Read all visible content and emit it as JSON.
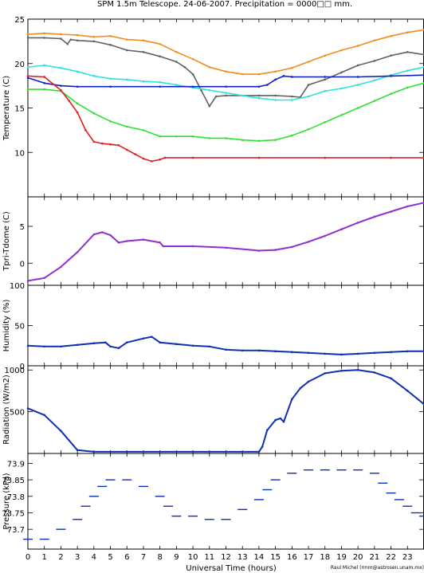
{
  "title": "SPM 1.5m Telescope. 24-06-2007. Precipitation = 0000□□ mm.",
  "xlabel": "Universal Time (hours)",
  "credit": "Raul Michel (rmm@astrosen.unam.mx)",
  "x_ticks": [
    "0",
    "1",
    "2",
    "3",
    "4",
    "5",
    "6",
    "7",
    "8",
    "9",
    "10",
    "11",
    "12",
    "13",
    "14",
    "15",
    "16",
    "17",
    "18",
    "19",
    "20",
    "21",
    "22",
    "23"
  ],
  "colors": {
    "orange": "#f08c1e",
    "gray": "#606060",
    "cyan": "#30e0e0",
    "blue": "#1020c0",
    "green": "#30e030",
    "red": "#e02020",
    "purple": "#9030d0",
    "navy": "#1030b0"
  },
  "chart_data": [
    {
      "type": "scatter",
      "ylabel": "Temperature (C)",
      "ylim": [
        5,
        25
      ],
      "y_ticks": [
        "10",
        "15",
        "20",
        "25"
      ],
      "xlim": [
        0,
        24
      ],
      "series": [
        {
          "color": "orange",
          "points": [
            [
              0,
              23.3
            ],
            [
              1,
              23.4
            ],
            [
              2,
              23.3
            ],
            [
              3,
              23.2
            ],
            [
              4,
              23.0
            ],
            [
              5,
              23.1
            ],
            [
              6,
              22.7
            ],
            [
              7,
              22.6
            ],
            [
              8,
              22.2
            ],
            [
              9,
              21.3
            ],
            [
              10,
              20.5
            ],
            [
              11,
              19.6
            ],
            [
              12,
              19.1
            ],
            [
              13,
              18.8
            ],
            [
              14,
              18.8
            ],
            [
              15,
              19.1
            ],
            [
              16,
              19.5
            ],
            [
              17,
              20.2
            ],
            [
              18,
              20.9
            ],
            [
              19,
              21.5
            ],
            [
              20,
              22.0
            ],
            [
              21,
              22.6
            ],
            [
              22,
              23.1
            ],
            [
              23,
              23.5
            ],
            [
              24,
              23.8
            ]
          ]
        },
        {
          "color": "gray",
          "points": [
            [
              0,
              22.9
            ],
            [
              1,
              22.9
            ],
            [
              2,
              22.8
            ],
            [
              2.4,
              22.2
            ],
            [
              2.6,
              22.7
            ],
            [
              3,
              22.6
            ],
            [
              4,
              22.5
            ],
            [
              5,
              22.1
            ],
            [
              6,
              21.5
            ],
            [
              7,
              21.3
            ],
            [
              8,
              20.8
            ],
            [
              9,
              20.2
            ],
            [
              9.5,
              19.6
            ],
            [
              10,
              18.8
            ],
            [
              10.5,
              17.0
            ],
            [
              11,
              15.2
            ],
            [
              11.4,
              16.3
            ],
            [
              12,
              16.4
            ],
            [
              14,
              16.4
            ],
            [
              15,
              16.4
            ],
            [
              16,
              16.3
            ],
            [
              16.5,
              16.2
            ],
            [
              17,
              17.6
            ],
            [
              18,
              18.2
            ],
            [
              19,
              19.0
            ],
            [
              20,
              19.8
            ],
            [
              21,
              20.3
            ],
            [
              22,
              20.9
            ],
            [
              23,
              21.3
            ],
            [
              24,
              21.0
            ]
          ]
        },
        {
          "color": "cyan",
          "points": [
            [
              0,
              19.6
            ],
            [
              1,
              19.8
            ],
            [
              2,
              19.5
            ],
            [
              3,
              19.1
            ],
            [
              4,
              18.6
            ],
            [
              5,
              18.3
            ],
            [
              6,
              18.2
            ],
            [
              7,
              18.0
            ],
            [
              8,
              17.9
            ],
            [
              9,
              17.6
            ],
            [
              10,
              17.3
            ],
            [
              11,
              17.0
            ],
            [
              12,
              16.7
            ],
            [
              13,
              16.4
            ],
            [
              14,
              16.1
            ],
            [
              15,
              15.9
            ],
            [
              16,
              15.9
            ],
            [
              17,
              16.3
            ],
            [
              18,
              16.9
            ],
            [
              19,
              17.2
            ],
            [
              20,
              17.6
            ],
            [
              21,
              18.1
            ],
            [
              22,
              18.7
            ],
            [
              23,
              19.2
            ],
            [
              24,
              19.6
            ]
          ]
        },
        {
          "color": "blue",
          "points": [
            [
              0,
              18.4
            ],
            [
              1,
              17.8
            ],
            [
              2,
              17.5
            ],
            [
              3,
              17.4
            ],
            [
              5,
              17.4
            ],
            [
              8,
              17.4
            ],
            [
              10,
              17.4
            ],
            [
              12,
              17.4
            ],
            [
              14,
              17.4
            ],
            [
              14.5,
              17.6
            ],
            [
              15,
              18.2
            ],
            [
              15.5,
              18.6
            ],
            [
              16,
              18.5
            ],
            [
              18,
              18.5
            ],
            [
              20,
              18.5
            ],
            [
              22,
              18.6
            ],
            [
              24,
              18.7
            ]
          ]
        },
        {
          "color": "green",
          "points": [
            [
              0,
              17.1
            ],
            [
              1,
              17.1
            ],
            [
              2,
              16.9
            ],
            [
              3,
              15.5
            ],
            [
              4,
              14.4
            ],
            [
              5,
              13.5
            ],
            [
              6,
              12.9
            ],
            [
              7,
              12.5
            ],
            [
              8,
              11.8
            ],
            [
              9,
              11.8
            ],
            [
              10,
              11.8
            ],
            [
              11,
              11.6
            ],
            [
              12,
              11.6
            ],
            [
              13,
              11.4
            ],
            [
              14,
              11.3
            ],
            [
              15,
              11.4
            ],
            [
              16,
              11.9
            ],
            [
              17,
              12.6
            ],
            [
              18,
              13.4
            ],
            [
              19,
              14.2
            ],
            [
              20,
              15.0
            ],
            [
              21,
              15.8
            ],
            [
              22,
              16.6
            ],
            [
              23,
              17.3
            ],
            [
              24,
              17.8
            ]
          ]
        },
        {
          "color": "red",
          "points": [
            [
              0,
              18.6
            ],
            [
              1,
              18.5
            ],
            [
              2,
              17.0
            ],
            [
              2.5,
              15.8
            ],
            [
              3,
              14.5
            ],
            [
              3.5,
              12.5
            ],
            [
              4,
              11.2
            ],
            [
              4.5,
              11.0
            ],
            [
              5,
              10.9
            ],
            [
              5.5,
              10.8
            ],
            [
              6,
              10.3
            ],
            [
              6.5,
              9.8
            ],
            [
              7,
              9.3
            ],
            [
              7.5,
              9.0
            ],
            [
              8,
              9.2
            ],
            [
              8.3,
              9.4
            ],
            [
              10,
              9.4
            ],
            [
              14,
              9.4
            ],
            [
              18,
              9.4
            ],
            [
              22,
              9.4
            ],
            [
              24,
              9.4
            ]
          ]
        }
      ]
    },
    {
      "type": "line",
      "ylabel": "Tpri-Tdome (C)",
      "ylim": [
        -3,
        9
      ],
      "y_ticks": [
        "0",
        "5"
      ],
      "xlim": [
        0,
        24
      ],
      "series": [
        {
          "color": "purple",
          "points": [
            [
              0,
              -2.4
            ],
            [
              1,
              -2.0
            ],
            [
              2,
              -0.5
            ],
            [
              3,
              1.5
            ],
            [
              4,
              3.9
            ],
            [
              4.5,
              4.2
            ],
            [
              5,
              3.8
            ],
            [
              5.5,
              2.8
            ],
            [
              6,
              3.0
            ],
            [
              7,
              3.2
            ],
            [
              8,
              2.8
            ],
            [
              8.2,
              2.3
            ],
            [
              10,
              2.3
            ],
            [
              12,
              2.1
            ],
            [
              14,
              1.7
            ],
            [
              15,
              1.8
            ],
            [
              16,
              2.2
            ],
            [
              17,
              2.9
            ],
            [
              18,
              3.7
            ],
            [
              19,
              4.6
            ],
            [
              20,
              5.5
            ],
            [
              21,
              6.3
            ],
            [
              22,
              7.0
            ],
            [
              23,
              7.7
            ],
            [
              24,
              8.2
            ]
          ]
        }
      ]
    },
    {
      "type": "line",
      "ylabel": "Humidity (%)",
      "ylim": [
        0,
        100
      ],
      "y_ticks": [
        "0",
        "50",
        "100"
      ],
      "xlim": [
        0,
        24
      ],
      "series": [
        {
          "color": "navy",
          "points": [
            [
              0,
              25
            ],
            [
              1,
              24
            ],
            [
              2,
              24
            ],
            [
              3,
              26
            ],
            [
              4,
              28
            ],
            [
              4.7,
              29
            ],
            [
              5,
              24
            ],
            [
              5.5,
              22
            ],
            [
              6,
              29
            ],
            [
              7,
              34
            ],
            [
              7.5,
              36
            ],
            [
              8,
              29
            ],
            [
              9,
              27
            ],
            [
              10,
              25
            ],
            [
              11,
              24
            ],
            [
              12,
              20
            ],
            [
              13,
              19
            ],
            [
              14,
              19
            ],
            [
              15,
              18
            ],
            [
              16,
              17
            ],
            [
              17,
              16
            ],
            [
              18,
              15
            ],
            [
              19,
              14
            ],
            [
              20,
              15
            ],
            [
              21,
              16
            ],
            [
              22,
              17
            ],
            [
              23,
              18
            ],
            [
              24,
              18
            ]
          ]
        }
      ]
    },
    {
      "type": "line",
      "ylabel": "Radiation (W/m2)",
      "ylim": [
        0,
        1050
      ],
      "y_ticks": [
        "500",
        "1000"
      ],
      "xlim": [
        0,
        24
      ],
      "series": [
        {
          "color": "navy",
          "points": [
            [
              0,
              540
            ],
            [
              1,
              460
            ],
            [
              2,
              270
            ],
            [
              3,
              40
            ],
            [
              4,
              20
            ],
            [
              6,
              20
            ],
            [
              10,
              20
            ],
            [
              14,
              20
            ],
            [
              14.2,
              80
            ],
            [
              14.5,
              280
            ],
            [
              15,
              400
            ],
            [
              15.3,
              420
            ],
            [
              15.5,
              380
            ],
            [
              16,
              650
            ],
            [
              16.5,
              780
            ],
            [
              17,
              860
            ],
            [
              18,
              960
            ],
            [
              19,
              990
            ],
            [
              20,
              1000
            ],
            [
              21,
              970
            ],
            [
              22,
              900
            ],
            [
              23,
              750
            ],
            [
              24,
              590
            ]
          ]
        }
      ]
    },
    {
      "type": "scatter",
      "ylabel": "Pressure (kPa)",
      "y_ticks": [
        "73.7",
        "73.75",
        "73.8",
        "73.85",
        "73.9"
      ],
      "ylim": [
        73.64,
        73.93
      ],
      "xlim": [
        0,
        24
      ],
      "series": [
        {
          "color": "navy",
          "points": [
            [
              0,
              73.67
            ],
            [
              1,
              73.67
            ],
            [
              2,
              73.7
            ],
            [
              3,
              73.73
            ],
            [
              3.5,
              73.77
            ],
            [
              4,
              73.8
            ],
            [
              4.5,
              73.83
            ],
            [
              5,
              73.85
            ],
            [
              6,
              73.85
            ],
            [
              7,
              73.83
            ],
            [
              8,
              73.8
            ],
            [
              8.5,
              73.77
            ],
            [
              9,
              73.74
            ],
            [
              10,
              73.74
            ],
            [
              11,
              73.73
            ],
            [
              12,
              73.73
            ],
            [
              13,
              73.76
            ],
            [
              14,
              73.79
            ],
            [
              14.5,
              73.82
            ],
            [
              15,
              73.85
            ],
            [
              16,
              73.87
            ],
            [
              17,
              73.88
            ],
            [
              18,
              73.88
            ],
            [
              19,
              73.88
            ],
            [
              20,
              73.88
            ],
            [
              21,
              73.87
            ],
            [
              21.5,
              73.84
            ],
            [
              22,
              73.81
            ],
            [
              22.5,
              73.79
            ],
            [
              23,
              73.77
            ],
            [
              23.5,
              73.75
            ],
            [
              24,
              73.74
            ]
          ]
        }
      ]
    }
  ]
}
